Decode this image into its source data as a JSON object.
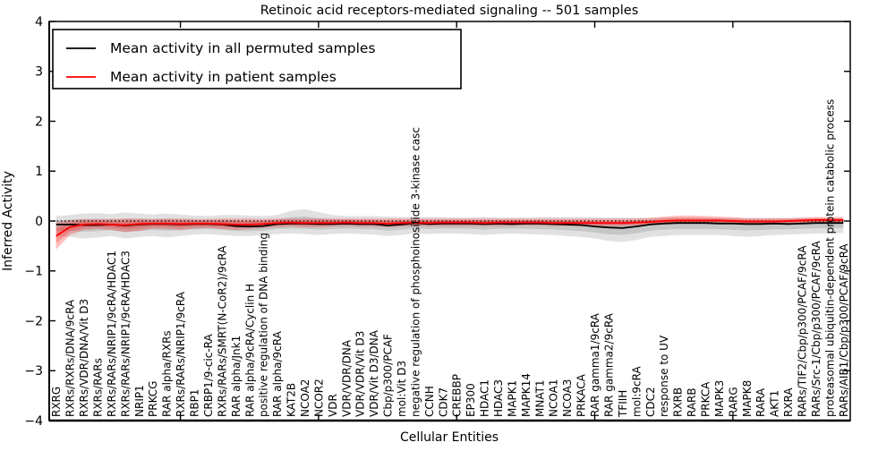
{
  "figure": {
    "title": "Retinoic acid receptors-mediated signaling -- 501 samples",
    "xlabel": "Cellular Entities",
    "ylabel": "Inferred Activity"
  },
  "legend": {
    "entries": [
      {
        "label": "Mean activity in all permuted samples",
        "color": "#000000"
      },
      {
        "label": "Mean activity in patient samples",
        "color": "#ff0000"
      }
    ]
  },
  "chart_data": {
    "type": "line",
    "title": "Retinoic acid receptors-mediated signaling -- 501 samples",
    "xlabel": "Cellular Entities",
    "ylabel": "Inferred Activity",
    "ylim": [
      -4,
      4
    ],
    "yticks": [
      4,
      3,
      2,
      1,
      0,
      -1,
      -2,
      -3,
      -4
    ],
    "zero_reference_line": true,
    "grid": false,
    "legend_position": "upper left",
    "colors": {
      "permuted_line": "#000000",
      "patient_line": "#ff0000",
      "permuted_band": "#aaaaaa",
      "patient_band": "#ff0000",
      "zero_line": "#000000",
      "background": "#ffffff"
    },
    "categories": [
      "RXRG",
      "RXRs/RXRs/DNA/9cRA",
      "RXRs/VDR/DNA/Vit D3",
      "RXRs/RARs",
      "RXRs/RARs/NRIP1/9cRA/HDAC1",
      "RXRs/RARs/NRIP1/9cRA/HDAC3",
      "NRIP1",
      "PRKCG",
      "RAR alpha/RXRs",
      "RXRs/RARs/NRIP1/9cRA",
      "RBP1",
      "CRBP1/9-cic-RA",
      "RXRs/RARs/SMRT(N-CoR2)/9cRA",
      "RAR alpha/Jnk1",
      "RAR alpha/9cRA/Cyclin H",
      "positive regulation of DNA binding",
      "RAR alpha/9cRA",
      "KAT2B",
      "NCOA2",
      "NCOR2",
      "VDR",
      "VDR/VDR/DNA",
      "VDR/VDR/Vit D3",
      "VDR/Vit D3/DNA",
      "Cbp/p300/PCAF",
      "mol:Vit D3",
      "negative regulation of phosphoinositide 3-kinase casc",
      "CCNH",
      "CDK7",
      "CREBBP",
      "EP300",
      "HDAC1",
      "HDAC3",
      "MAPK1",
      "MAPK14",
      "MNAT1",
      "NCOA1",
      "NCOA3",
      "PRKACA",
      "RAR gamma1/9cRA",
      "RAR gamma2/9cRA",
      "TFIIH",
      "mol:9cRA",
      "CDC2",
      "response to UV",
      "RXRB",
      "RARB",
      "PRKCA",
      "MAPK3",
      "RARG",
      "MAPK8",
      "RARA",
      "AKT1",
      "RXRA",
      "RARs/TIF2/Cbp/p300/PCAF/9cRA",
      "RARs/Src-1/Cbp/p300/PCAF/9cRA",
      "proteasomal ubiquitin-dependent protein catabolic process",
      "RARs/AIB1/Cbp/p300/PCAF/9cRA"
    ],
    "series": [
      {
        "name": "Mean activity in all permuted samples",
        "color": "#000000",
        "values": [
          -0.07,
          -0.07,
          -0.08,
          -0.08,
          -0.07,
          -0.09,
          -0.07,
          -0.06,
          -0.06,
          -0.07,
          -0.06,
          -0.06,
          -0.07,
          -0.1,
          -0.11,
          -0.1,
          -0.06,
          -0.05,
          -0.05,
          -0.06,
          -0.06,
          -0.05,
          -0.06,
          -0.06,
          -0.09,
          -0.07,
          -0.04,
          -0.06,
          -0.05,
          -0.05,
          -0.05,
          -0.06,
          -0.05,
          -0.06,
          -0.05,
          -0.05,
          -0.06,
          -0.07,
          -0.08,
          -0.11,
          -0.13,
          -0.14,
          -0.11,
          -0.07,
          -0.05,
          -0.04,
          -0.04,
          -0.04,
          -0.05,
          -0.05,
          -0.06,
          -0.06,
          -0.05,
          -0.06,
          -0.05,
          -0.04,
          -0.04,
          -0.04
        ],
        "band_upper": [
          0.1,
          0.12,
          0.15,
          0.16,
          0.14,
          0.17,
          0.15,
          0.13,
          0.15,
          0.13,
          0.11,
          0.1,
          0.12,
          0.12,
          0.11,
          0.1,
          0.12,
          0.2,
          0.24,
          0.18,
          0.12,
          0.1,
          0.1,
          0.1,
          0.09,
          0.08,
          0.08,
          0.08,
          0.08,
          0.07,
          0.07,
          0.08,
          0.07,
          0.07,
          0.07,
          0.08,
          0.08,
          0.08,
          0.08,
          0.08,
          0.07,
          0.07,
          0.07,
          0.07,
          0.07,
          0.07,
          0.07,
          0.07,
          0.06,
          0.06,
          0.06,
          0.06,
          0.06,
          0.06,
          0.06,
          0.06,
          0.06,
          0.06
        ],
        "band_lower": [
          -0.3,
          -0.32,
          -0.35,
          -0.33,
          -0.3,
          -0.35,
          -0.32,
          -0.3,
          -0.33,
          -0.3,
          -0.27,
          -0.26,
          -0.28,
          -0.3,
          -0.3,
          -0.28,
          -0.26,
          -0.25,
          -0.26,
          -0.28,
          -0.26,
          -0.25,
          -0.26,
          -0.27,
          -0.3,
          -0.28,
          -0.25,
          -0.26,
          -0.25,
          -0.25,
          -0.26,
          -0.28,
          -0.26,
          -0.25,
          -0.26,
          -0.27,
          -0.28,
          -0.3,
          -0.32,
          -0.35,
          -0.4,
          -0.42,
          -0.38,
          -0.32,
          -0.3,
          -0.28,
          -0.28,
          -0.28,
          -0.28,
          -0.3,
          -0.32,
          -0.3,
          -0.28,
          -0.27,
          -0.26,
          -0.25,
          -0.25,
          -0.24
        ]
      },
      {
        "name": "Mean activity in patient samples",
        "color": "#ff0000",
        "values": [
          -0.3,
          -0.12,
          -0.07,
          -0.06,
          -0.07,
          -0.08,
          -0.06,
          -0.05,
          -0.05,
          -0.06,
          -0.05,
          -0.05,
          -0.06,
          -0.07,
          -0.07,
          -0.06,
          -0.04,
          -0.03,
          -0.04,
          -0.04,
          -0.04,
          -0.03,
          -0.04,
          -0.04,
          -0.05,
          -0.04,
          -0.03,
          -0.04,
          -0.03,
          -0.03,
          -0.03,
          -0.04,
          -0.03,
          -0.03,
          -0.03,
          -0.03,
          -0.04,
          -0.04,
          -0.04,
          -0.04,
          -0.04,
          -0.04,
          -0.03,
          -0.02,
          0.0,
          0.01,
          0.01,
          0.01,
          0.01,
          0.0,
          -0.01,
          -0.01,
          -0.01,
          0.0,
          0.01,
          0.02,
          0.02,
          0.02
        ],
        "band_upper": [
          -0.03,
          0.02,
          0.04,
          0.04,
          0.04,
          0.05,
          0.05,
          0.04,
          0.05,
          0.05,
          0.04,
          0.04,
          0.05,
          0.05,
          0.05,
          0.04,
          0.05,
          0.05,
          0.05,
          0.05,
          0.05,
          0.05,
          0.05,
          0.05,
          0.05,
          0.05,
          0.05,
          0.05,
          0.05,
          0.05,
          0.05,
          0.05,
          0.05,
          0.05,
          0.05,
          0.05,
          0.05,
          0.05,
          0.05,
          0.05,
          0.05,
          0.05,
          0.05,
          0.06,
          0.09,
          0.11,
          0.11,
          0.1,
          0.09,
          0.08,
          0.06,
          0.06,
          0.06,
          0.06,
          0.07,
          0.08,
          0.08,
          0.08
        ],
        "band_lower": [
          -0.57,
          -0.28,
          -0.18,
          -0.16,
          -0.18,
          -0.22,
          -0.2,
          -0.15,
          -0.16,
          -0.18,
          -0.15,
          -0.14,
          -0.16,
          -0.18,
          -0.16,
          -0.14,
          -0.12,
          -0.11,
          -0.12,
          -0.12,
          -0.11,
          -0.1,
          -0.11,
          -0.11,
          -0.12,
          -0.11,
          -0.1,
          -0.1,
          -0.1,
          -0.1,
          -0.1,
          -0.1,
          -0.1,
          -0.1,
          -0.09,
          -0.09,
          -0.1,
          -0.1,
          -0.1,
          -0.1,
          -0.1,
          -0.1,
          -0.09,
          -0.08,
          -0.07,
          -0.06,
          -0.06,
          -0.06,
          -0.06,
          -0.06,
          -0.07,
          -0.07,
          -0.06,
          -0.05,
          -0.05,
          -0.04,
          -0.04,
          -0.04
        ]
      }
    ]
  }
}
